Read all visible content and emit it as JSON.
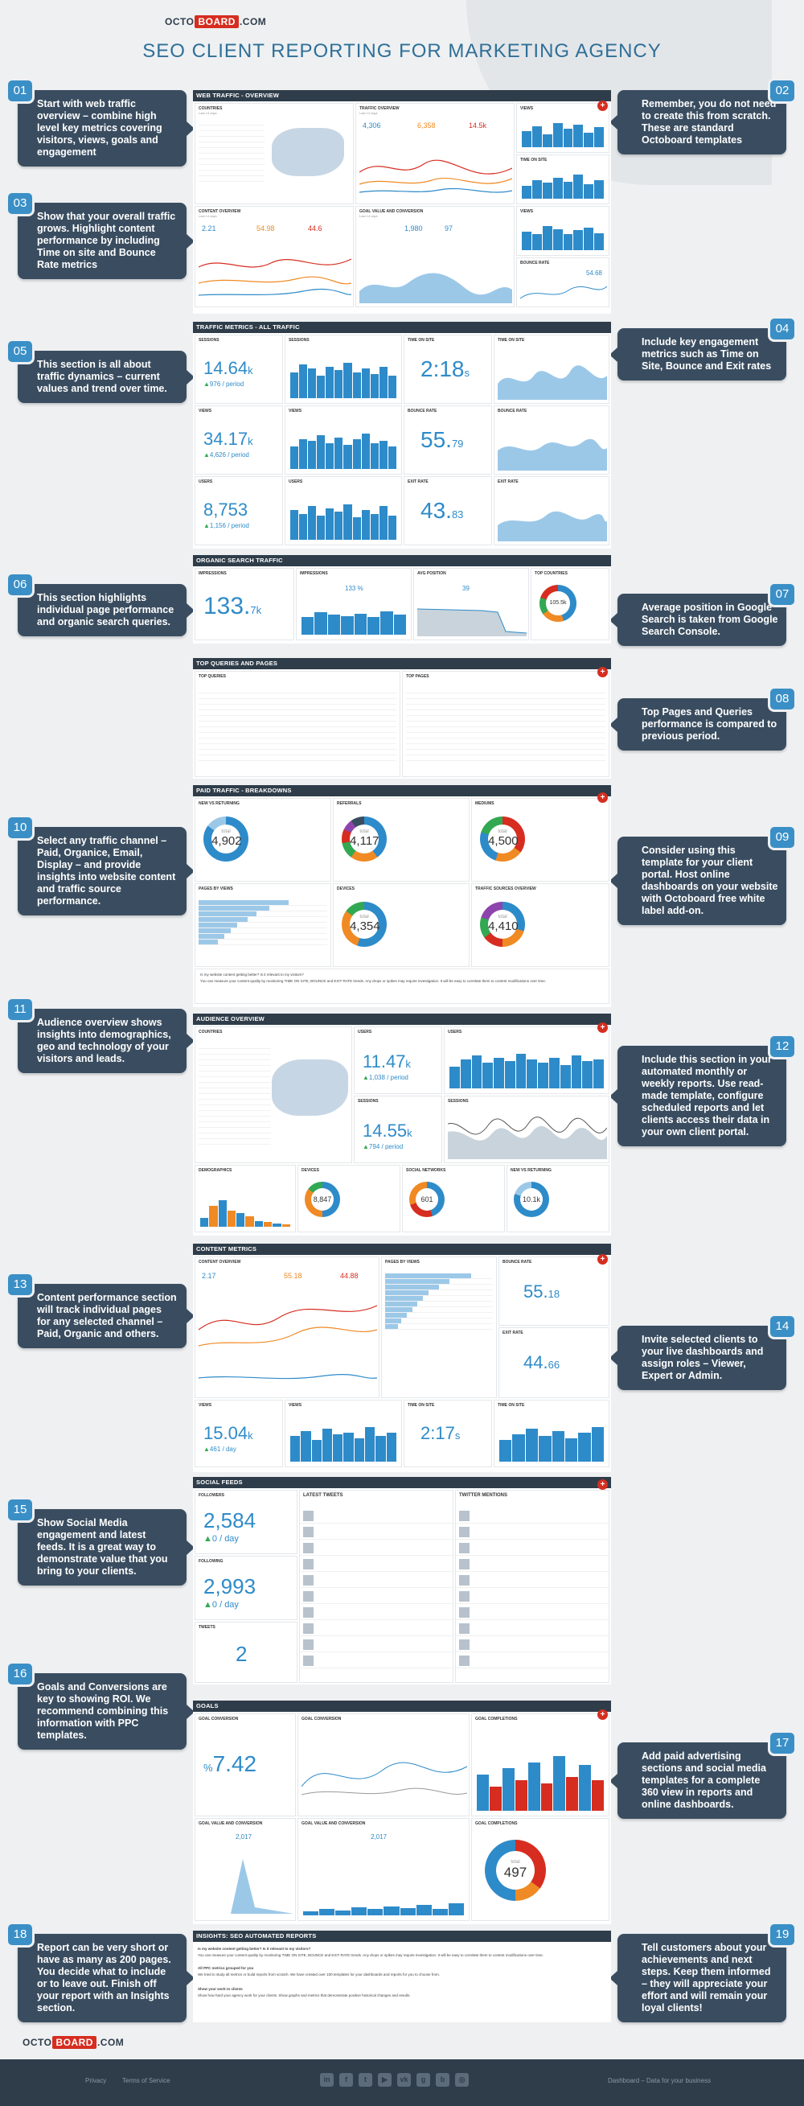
{
  "header": {
    "logo_pre": "OCTO",
    "logo_mid": "BOARD",
    "logo_post": ".COM",
    "title": "SEO CLIENT REPORTING FOR MARKETING AGENCY"
  },
  "callouts": [
    {
      "n": "01",
      "text": "Start with web traffic overview – combine high level key metrics covering visitors, views, goals and engagement"
    },
    {
      "n": "02",
      "text": "Remember, you do not need to create this from scratch. These are standard Octoboard templates"
    },
    {
      "n": "03",
      "text": "Show that your overall traffic grows. Highlight content performance by including Time on site and Bounce Rate metrics"
    },
    {
      "n": "04",
      "text": "Include key engagement metrics such as Time on Site, Bounce and Exit rates"
    },
    {
      "n": "05",
      "text": "This section is all about traffic dynamics – current values and trend over time."
    },
    {
      "n": "06",
      "text": "This section highlights individual page performance and organic search queries."
    },
    {
      "n": "07",
      "text": "Average position in Google Search is taken from Google Search Console."
    },
    {
      "n": "08",
      "text": "Top Pages and Queries performance is compared to previous period."
    },
    {
      "n": "09",
      "text": "Consider using this template for your client portal. Host online dashboards on your website with Octoboard free white label add-on."
    },
    {
      "n": "10",
      "text": "Select any traffic channel – Paid, Organice, Email, Display – and provide insights into website content and traffic source performance."
    },
    {
      "n": "11",
      "text": "Audience overview shows insights into demographics, geo and technology of your visitors and leads."
    },
    {
      "n": "12",
      "text": "Include this section in your automated monthly or weekly reports. Use read-made template, configure scheduled reports and let clients access their data in your own client portal."
    },
    {
      "n": "13",
      "text": "Content performance section will track individual pages for any selected channel – Paid, Organic and others."
    },
    {
      "n": "14",
      "text": "Invite selected clients to your live dashboards and assign roles – Viewer, Expert or Admin."
    },
    {
      "n": "15",
      "text": "Show Social Media engagement and latest feeds. It is a great way to demonstrate value that you bring to your clients."
    },
    {
      "n": "16",
      "text": "Goals and Conversions are key to showing ROI. We recommend combining this information with PPC templates."
    },
    {
      "n": "17",
      "text": "Add paid advertising sections and social media templates for a complete 360 view in reports and online dashboards."
    },
    {
      "n": "18",
      "text": "Report can be very short or have as many as 200 pages. You decide what to include or to leave out. Finish off your report with an Insights section."
    },
    {
      "n": "19",
      "text": "Tell customers about your achievements and next steps. Keep them informed – they will appreciate your effort and will remain your loyal clients!"
    }
  ],
  "sections": {
    "s1": "WEB TRAFFIC - OVERVIEW",
    "s2": "TRAFFIC METRICS - ALL TRAFFIC",
    "s3": "ORGANIC SEARCH TRAFFIC",
    "s4": "TOP QUERIES AND PAGES",
    "s5": "PAID TRAFFIC - BREAKDOWNS",
    "s6": "AUDIENCE OVERVIEW",
    "s7": "CONTENT METRICS",
    "s8": "SOCIAL FEEDS",
    "s9": "GOALS",
    "s10": "INSIGHTS: SEO AUTOMATED REPORTS"
  },
  "widgets": {
    "countries": "COUNTRIES",
    "traffic_overview": "TRAFFIC OVERVIEW",
    "views": "VIEWS",
    "time_on_site": "TIME ON SITE",
    "content_overview": "CONTENT OVERVIEW",
    "goal_value": "GOAL VALUE AND CONVERSION",
    "bounce_rate": "BOUNCE RATE",
    "sessions": "SESSIONS",
    "users": "USERS",
    "exit_rate": "EXIT RATE",
    "impressions": "IMPRESSIONS",
    "avg_position": "AVG POSITION",
    "top_countries": "TOP COUNTRIES",
    "top_queries": "TOP QUERIES",
    "top_pages": "TOP PAGES",
    "new_returning": "NEW VS RETURNING",
    "referrals": "REFERRALS",
    "mediums": "MEDIUMS",
    "pages_views": "PAGES BY VIEWS",
    "devices": "DEVICES",
    "traffic_sources": "TRAFFIC SOURCES OVERVIEW",
    "demographics": "DEMOGRAPHICS",
    "social_networks": "SOCIAL NETWORKS",
    "followers": "FOLLOWERS",
    "following": "FOLLOWING",
    "tweets": "TWEETS",
    "latest_tweets": "LATEST TWEETS",
    "twitter_mentions": "TWITTER MENTIONS",
    "goal_conversion": "GOAL CONVERSION",
    "goal_completions": "GOAL COMPLETIONS",
    "sub": "Last 14 days"
  },
  "values": {
    "traffic_a": "4,306",
    "traffic_b": "6,358",
    "traffic_c": "14.5k",
    "content_a": "2.21",
    "content_b": "54.98",
    "content_c": "44.6",
    "goal_a": "1,980",
    "goal_b": "97",
    "bounce_small": "54.68",
    "sessions": "14.64",
    "sessions_k": "k",
    "sessions_delta": "976",
    "views": "34.17",
    "views_delta": "4,626",
    "users": "8,753",
    "users_delta": "1,156",
    "time": "2:18",
    "time_s": "s",
    "bounce": "55.",
    "bounce_s": "79",
    "exit": "43.",
    "exit_s": "83",
    "period": "/ period",
    "impr": "133.",
    "impr_k": "7k",
    "clicks_pct": "133 %",
    "pos": "39",
    "countries_total": "105.5k",
    "total": "total",
    "nr": "4,902",
    "ref": "4,117",
    "med": "4,500",
    "dev": "4,354",
    "src": "4,410",
    "aud_users": "11.47",
    "aud_users_delta": "1,038",
    "aud_sess": "14.55",
    "aud_sess_delta": "794",
    "dev2": "8,847",
    "soc": "601",
    "nr2": "10.1k",
    "cm_a": "2.17",
    "cm_b": "55.18",
    "cm_c": "44.88",
    "cm_bounce": "55.",
    "cm_bounce_s": "18",
    "cm_exit": "44.",
    "cm_exit_s": "66",
    "cm_views": "15.04",
    "cm_views_k": "k",
    "cm_views_delta": "461",
    "per_day": "/ day",
    "cm_time": "2:17",
    "cm_time_s": "s",
    "followers": "2,584",
    "followers_delta": "0",
    "following": "2,993",
    "following_delta": "0",
    "tweets": "2",
    "goal_pct": "7.42",
    "goal_sign": "%",
    "goal_compl": "497",
    "goal_v1": "2,017",
    "goal_v2": "2,017"
  },
  "insights": {
    "q1": "Is my website content getting better? Is it relevant to my visitors?",
    "p1": "You can measure your content quality by monitoring TIME ON SITE, BOUNCE and EXIT RATE trends. Any drops or spikes may require investigation. It will be easy to correlate them to content modifications over time.",
    "q2": "All PPC metrics grouped for you",
    "p2": "We tried to study all metrics or build reports from scratch. We have created over 100 templates for your dashboards and reports for you to choose from.",
    "q3": "Show your work to clients",
    "p3": "Show how hard your agency work for your clients. Show graphs and metrics that demonstrate positive historical changes and results."
  },
  "footer": {
    "privacy": "Privacy",
    "terms": "Terms of Service",
    "right": "Dashboard – Data for your business"
  }
}
